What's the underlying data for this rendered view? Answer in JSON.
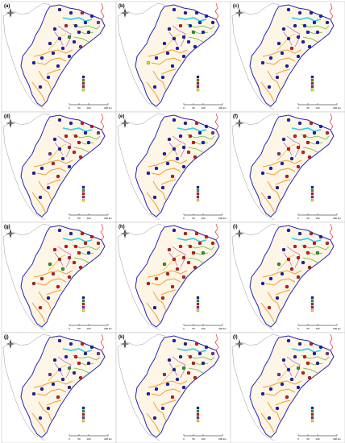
{
  "panels": [
    {
      "letter": "(a)",
      "dot_colors": [
        "#1f1fbf",
        "#1f1fbf",
        "#d7191c",
        "#1f1fbf",
        "#7b3294",
        "#1f1fbf",
        "#1f1fbf",
        "#d7191c",
        "#1f1fbf",
        "#1f1fbf",
        "#1f1fbf",
        "#2ca02c",
        "#1f1fbf",
        "#1f1fbf",
        "#1f1fbf",
        "#1f1fbf",
        "#7b3294",
        "#1f1fbf",
        "#1f1fbf",
        "#1f1fbf",
        "#1f1fbf",
        "#1f1fbf",
        "#1f1fbf",
        "#1f1fbf"
      ]
    },
    {
      "letter": "(b)",
      "dot_colors": [
        "#1f1fbf",
        "#1f1fbf",
        "#1f1fbf",
        "#1f1fbf",
        "#1f1fbf",
        "#1f1fbf",
        "#1f1fbf",
        "#d7191c",
        "#1f1fbf",
        "#2ca02c",
        "#1f1fbf",
        "#1f1fbf",
        "#1f1fbf",
        "#1f1fbf",
        "#1f1fbf",
        "#1f1fbf",
        "#1f1fbf",
        "#1f1fbf",
        "#1f1fbf",
        "#1f1fbf",
        "#e8e81a",
        "#1f1fbf",
        "#1f1fbf",
        "#1f1fbf"
      ]
    },
    {
      "letter": "(c)",
      "dot_colors": [
        "#1f1fbf",
        "#1f1fbf",
        "#1f1fbf",
        "#1f1fbf",
        "#1f1fbf",
        "#1f1fbf",
        "#1f1fbf",
        "#1f1fbf",
        "#1f1fbf",
        "#1f1fbf",
        "#1f1fbf",
        "#1f1fbf",
        "#1f1fbf",
        "#1f1fbf",
        "#1f1fbf",
        "#d7191c",
        "#1f1fbf",
        "#1f1fbf",
        "#1f1fbf",
        "#1f1fbf",
        "#1f1fbf",
        "#1f1fbf",
        "#1f1fbf",
        "#1f1fbf"
      ]
    },
    {
      "letter": "(d)",
      "dot_colors": [
        "#1f1fbf",
        "#1f1fbf",
        "#d7191c",
        "#d7191c",
        "#7b3294",
        "#1f1fbf",
        "#d7191c",
        "#d7191c",
        "#1f1fbf",
        "#d7191c",
        "#1f1fbf",
        "#d7191c",
        "#1f1fbf",
        "#d7191c",
        "#7b3294",
        "#1f1fbf",
        "#d7191c",
        "#d7191c",
        "#1f1fbf",
        "#1f1fbf",
        "#1f1fbf",
        "#d7191c",
        "#1f1fbf",
        "#1f1fbf"
      ]
    },
    {
      "letter": "(e)",
      "dot_colors": [
        "#1f1fbf",
        "#1f1fbf",
        "#d7191c",
        "#1f1fbf",
        "#7b3294",
        "#1f1fbf",
        "#d7191c",
        "#1f1fbf",
        "#1f1fbf",
        "#d7191c",
        "#1f1fbf",
        "#1f1fbf",
        "#1f1fbf",
        "#d7191c",
        "#1f1fbf",
        "#1f1fbf",
        "#d7191c",
        "#1f1fbf",
        "#1f1fbf",
        "#1f1fbf",
        "#1f1fbf",
        "#d7191c",
        "#1f1fbf",
        "#1f1fbf"
      ]
    },
    {
      "letter": "(f)",
      "dot_colors": [
        "#1f1fbf",
        "#1f1fbf",
        "#d7191c",
        "#1f1fbf",
        "#d7191c",
        "#1f1fbf",
        "#d7191c",
        "#d7191c",
        "#1f1fbf",
        "#d7191c",
        "#1f1fbf",
        "#d7191c",
        "#d7191c",
        "#d7191c",
        "#7b3294",
        "#1f1fbf",
        "#d7191c",
        "#1f1fbf",
        "#1f1fbf",
        "#d7191c",
        "#1f1fbf",
        "#d7191c",
        "#1f1fbf",
        "#1f1fbf"
      ]
    },
    {
      "letter": "(g)",
      "dot_colors": [
        "#1f1fbf",
        "#1f1fbf",
        "#d7191c",
        "#d7191c",
        "#d7191c",
        "#d7191c",
        "#d7191c",
        "#d7191c",
        "#d7191c",
        "#d7191c",
        "#1f1fbf",
        "#d7191c",
        "#d7191c",
        "#d7191c",
        "#2ca02c",
        "#2ca02c",
        "#d7191c",
        "#d7191c",
        "#d7191c",
        "#d7191c",
        "#d7191c",
        "#d7191c",
        "#1f1fbf",
        "#d7191c"
      ]
    },
    {
      "letter": "(h)",
      "dot_colors": [
        "#1f1fbf",
        "#d7191c",
        "#d7191c",
        "#d7191c",
        "#d7191c",
        "#d7191c",
        "#d7191c",
        "#d7191c",
        "#d7191c",
        "#d7191c",
        "#2ca02c",
        "#d7191c",
        "#d7191c",
        "#d7191c",
        "#2ca02c",
        "#d7191c",
        "#d7191c",
        "#d7191c",
        "#d7191c",
        "#d7191c",
        "#d7191c",
        "#d7191c",
        "#d7191c",
        "#1f1fbf"
      ]
    },
    {
      "letter": "(i)",
      "dot_colors": [
        "#1f1fbf",
        "#1f1fbf",
        "#d7191c",
        "#1f1fbf",
        "#d7191c",
        "#d7191c",
        "#d7191c",
        "#d7191c",
        "#1f1fbf",
        "#d7191c",
        "#2ca02c",
        "#d7191c",
        "#d7191c",
        "#1f1fbf",
        "#2ca02c",
        "#d7191c",
        "#d7191c",
        "#1f1fbf",
        "#1f1fbf",
        "#d7191c",
        "#1f1fbf",
        "#d7191c",
        "#1f1fbf",
        "#d7191c"
      ]
    },
    {
      "letter": "(j)",
      "dot_colors": [
        "#1f1fbf",
        "#1f1fbf",
        "#d7191c",
        "#1f1fbf",
        "#7b3294",
        "#1f1fbf",
        "#d7191c",
        "#1f1fbf",
        "#1f1fbf",
        "#d7191c",
        "#1f1fbf",
        "#2ca02c",
        "#1f1fbf",
        "#1f1fbf",
        "#7b3294",
        "#1f1fbf",
        "#d7191c",
        "#1f1fbf",
        "#1f1fbf",
        "#1f1fbf",
        "#1f1fbf",
        "#d7191c",
        "#1f1fbf",
        "#1f1fbf"
      ]
    },
    {
      "letter": "(k)",
      "dot_colors": [
        "#1f1fbf",
        "#1f1fbf",
        "#d7191c",
        "#1f1fbf",
        "#7b3294",
        "#1f1fbf",
        "#d7191c",
        "#1f1fbf",
        "#1f1fbf",
        "#d7191c",
        "#1f1fbf",
        "#2ca02c",
        "#1f1fbf",
        "#d7191c",
        "#7b3294",
        "#1f1fbf",
        "#d7191c",
        "#1f1fbf",
        "#1f1fbf",
        "#1f1fbf",
        "#1f1fbf",
        "#d7191c",
        "#1f1fbf",
        "#1f1fbf"
      ]
    },
    {
      "letter": "(l)",
      "dot_colors": [
        "#1f1fbf",
        "#1f1fbf",
        "#d7191c",
        "#1f1fbf",
        "#7b3294",
        "#1f1fbf",
        "#d7191c",
        "#1f1fbf",
        "#1f1fbf",
        "#d7191c",
        "#1f1fbf",
        "#2ca02c",
        "#1f1fbf",
        "#d7191c",
        "#7b3294",
        "#1f1fbf",
        "#d7191c",
        "#1f1fbf",
        "#1f1fbf",
        "#1f1fbf",
        "#1f1fbf",
        "#d7191c",
        "#1f1fbf",
        "#1f1fbf"
      ]
    }
  ],
  "scale_labels": [
    "0",
    "50",
    "100",
    "200 km"
  ],
  "legend_colors": [
    "#1f1fbf",
    "#2ca02c",
    "#d7191c",
    "#7b3294",
    "#e8e81a"
  ],
  "colors": {
    "boundary": "#2323b8",
    "region_fill": "#fdf5e6",
    "river_orange": "#f0a030",
    "river_green": "#66bb44",
    "river_cyan": "#33ccee",
    "river_purple": "#b060c0",
    "border_red": "#dd3333",
    "neighbor": "#9a9a9a"
  }
}
